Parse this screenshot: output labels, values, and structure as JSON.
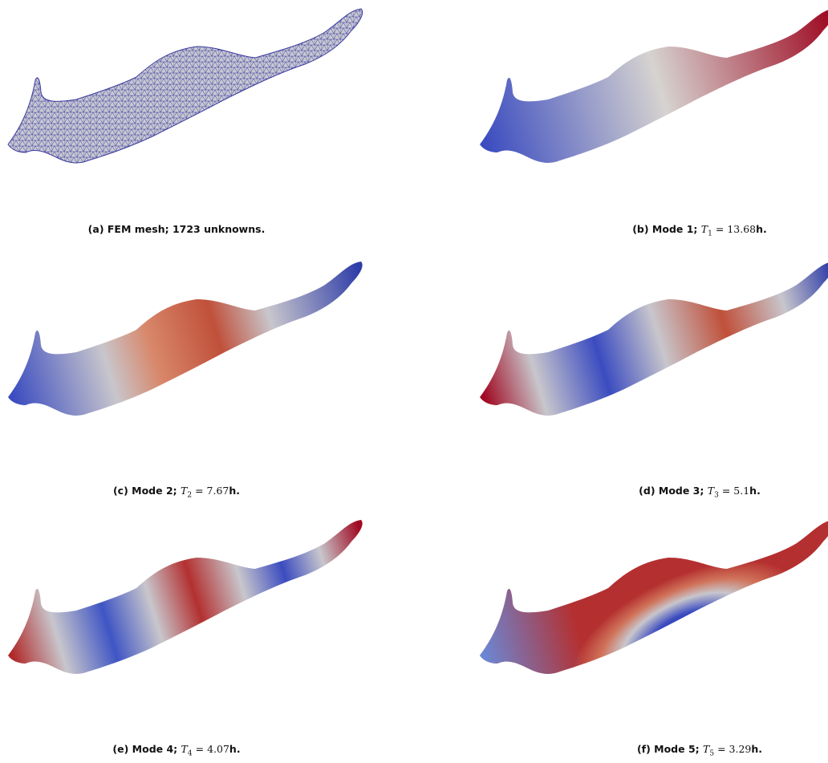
{
  "captions": [
    {
      "label": "(a) FEM mesh; 1723 unknowns."
    },
    {
      "label": "(b) Mode 1;",
      "symbol": "T",
      "subscript": "1",
      "relation": "=",
      "value": "13.68",
      "unit": "h."
    },
    {
      "label": "(c) Mode 2;",
      "symbol": "T",
      "subscript": "2",
      "relation": "=",
      "value": "7.67",
      "unit": "h."
    },
    {
      "label": "(d) Mode 3;",
      "symbol": "T",
      "subscript": "3",
      "relation": "=",
      "value": "5.1",
      "unit": "h."
    },
    {
      "label": "(e) Mode 4;",
      "symbol": "T",
      "subscript": "4",
      "relation": "=",
      "value": "4.07",
      "unit": "h."
    },
    {
      "label": "(f) Mode 5;",
      "symbol": "T",
      "subscript": "5",
      "relation": "=",
      "value": "3.29",
      "unit": "h."
    }
  ]
}
